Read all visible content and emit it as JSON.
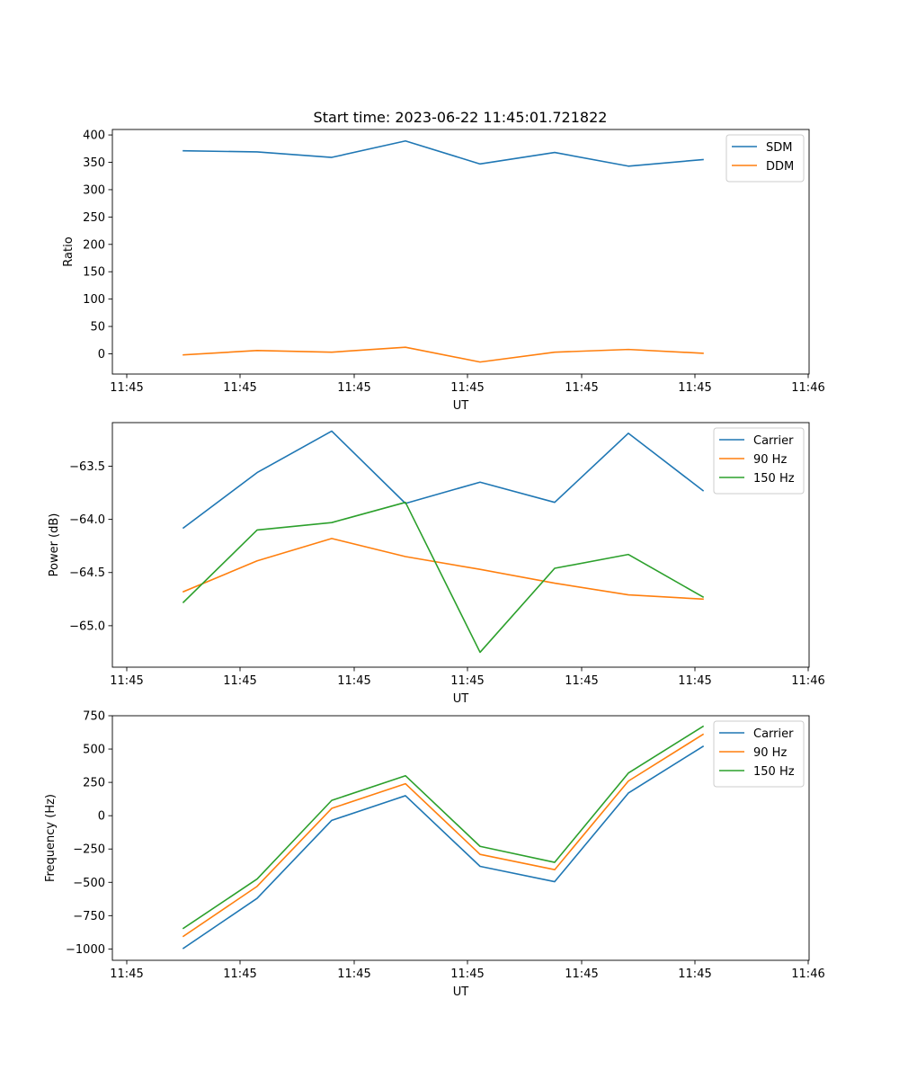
{
  "title": "Start time: 2023-06-22 11:45:01.721822",
  "colors": {
    "blue": "#1f77b4",
    "orange": "#ff7f0e",
    "green": "#2ca02c"
  },
  "chart_data": [
    {
      "type": "line",
      "xlabel": "UT",
      "ylabel": "Ratio",
      "x_tick_labels": [
        "11:45",
        "11:45",
        "11:45",
        "11:45",
        "11:45",
        "11:45",
        "11:46"
      ],
      "yticks": [
        0,
        50,
        100,
        150,
        200,
        250,
        300,
        350,
        400
      ],
      "ylim": [
        -37,
        410
      ],
      "legend_position": "upper right",
      "series": [
        {
          "name": "SDM",
          "color": "#1f77b4",
          "values": [
            371,
            369,
            359,
            389,
            347,
            368,
            343,
            355
          ]
        },
        {
          "name": "DDM",
          "color": "#ff7f0e",
          "values": [
            -2,
            6,
            3,
            12,
            -15,
            3,
            8,
            1
          ]
        }
      ]
    },
    {
      "type": "line",
      "xlabel": "UT",
      "ylabel": "Power (dB)",
      "x_tick_labels": [
        "11:45",
        "11:45",
        "11:45",
        "11:45",
        "11:45",
        "11:45",
        "11:46"
      ],
      "yticks": [
        -65.0,
        -64.5,
        -64.0,
        -63.5
      ],
      "ytick_labels": [
        "−65.0",
        "−64.5",
        "−64.0",
        "−63.5"
      ],
      "ylim": [
        -65.39,
        -63.09
      ],
      "legend_position": "upper right",
      "series": [
        {
          "name": "Carrier",
          "color": "#1f77b4",
          "values": [
            -64.08,
            -63.56,
            -63.17,
            -63.85,
            -63.65,
            -63.84,
            -63.19,
            -63.73
          ]
        },
        {
          "name": "90 Hz",
          "color": "#ff7f0e",
          "values": [
            -64.68,
            -64.39,
            -64.18,
            -64.35,
            -64.47,
            -64.6,
            -64.71,
            -64.75
          ]
        },
        {
          "name": "150 Hz",
          "color": "#2ca02c",
          "values": [
            -64.78,
            -64.1,
            -64.03,
            -63.84,
            -65.25,
            -64.46,
            -64.33,
            -64.73
          ]
        }
      ]
    },
    {
      "type": "line",
      "xlabel": "UT",
      "ylabel": "Frequency (Hz)",
      "x_tick_labels": [
        "11:45",
        "11:45",
        "11:45",
        "11:45",
        "11:45",
        "11:45",
        "11:46"
      ],
      "yticks": [
        -1000,
        -750,
        -500,
        -250,
        0,
        250,
        500,
        750
      ],
      "ytick_labels": [
        "−1000",
        "−750",
        "−500",
        "−250",
        "0",
        "250",
        "500",
        "750"
      ],
      "ylim": [
        -1085,
        750
      ],
      "legend_position": "upper right",
      "series": [
        {
          "name": "Carrier",
          "color": "#1f77b4",
          "values": [
            -995,
            -620,
            -35,
            150,
            -380,
            -495,
            170,
            520
          ]
        },
        {
          "name": "90 Hz",
          "color": "#ff7f0e",
          "values": [
            -905,
            -530,
            55,
            240,
            -290,
            -405,
            260,
            610
          ]
        },
        {
          "name": "150 Hz",
          "color": "#2ca02c",
          "values": [
            -845,
            -475,
            115,
            300,
            -230,
            -350,
            320,
            670
          ]
        }
      ]
    }
  ]
}
